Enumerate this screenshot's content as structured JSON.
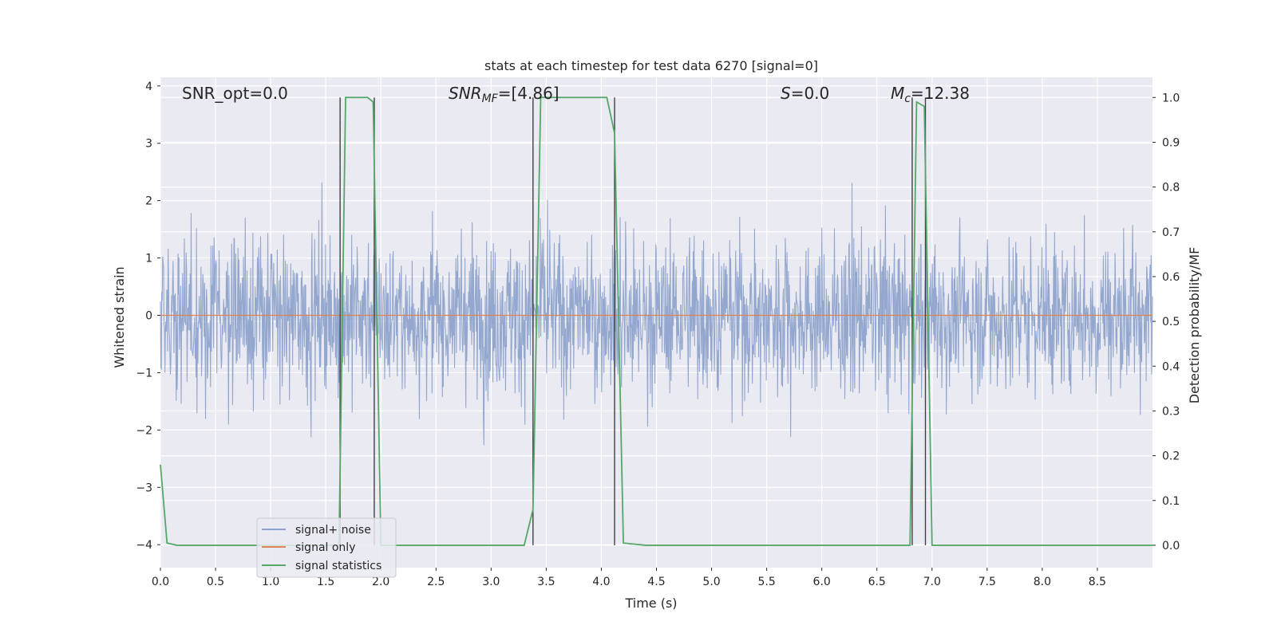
{
  "chart_data": {
    "type": "line",
    "title": "stats at each timestep for test data 6270 [signal=0]",
    "xlabel": "Time (s)",
    "ylabel": "Whitened strain",
    "ylabel_right": "Detection probability/MF",
    "xlim": [
      0,
      9.0
    ],
    "ylim": [
      -4.4,
      4.15
    ],
    "ylim_right": [
      -0.05,
      1.045
    ],
    "x_ticks": [
      0.0,
      0.5,
      1.0,
      1.5,
      2.0,
      2.5,
      3.0,
      3.5,
      4.0,
      4.5,
      5.0,
      5.5,
      6.0,
      6.5,
      7.0,
      7.5,
      8.0,
      8.5
    ],
    "x_tick_labels": [
      "0.0",
      "0.5",
      "1.0",
      "1.5",
      "2.0",
      "2.5",
      "3.0",
      "3.5",
      "4.0",
      "4.5",
      "5.0",
      "5.5",
      "6.0",
      "6.5",
      "7.0",
      "7.5",
      "8.0",
      "8.5"
    ],
    "y_ticks": [
      -4,
      -3,
      -2,
      -1,
      0,
      1,
      2,
      3,
      4
    ],
    "y_tick_labels": [
      "−4",
      "−3",
      "−2",
      "−1",
      "0",
      "1",
      "2",
      "3",
      "4"
    ],
    "y_ticks_right": [
      0.0,
      0.1,
      0.2,
      0.3,
      0.4,
      0.5,
      0.6,
      0.7,
      0.8,
      0.9,
      1.0
    ],
    "y_tick_labels_right": [
      "0.0",
      "0.1",
      "0.2",
      "0.3",
      "0.4",
      "0.5",
      "0.6",
      "0.7",
      "0.8",
      "0.9",
      "1.0"
    ],
    "grid": true,
    "legend_position": "lower-left",
    "colors": {
      "noise": "#8fa4cc",
      "signal": "#dd8452",
      "stats": "#55a868",
      "vlines": "#404040",
      "background": "#eaeaf2"
    },
    "annotations": {
      "snr_opt": "SNR_opt=0.0",
      "snr_mf_main": "SNR",
      "snr_mf_sub": "MF",
      "snr_mf_value": "=[4.86]",
      "s_main": "S",
      "s_value": "=0.0",
      "mc_main": "M",
      "mc_sub": "c",
      "mc_value": "=12.38"
    },
    "series": [
      {
        "name": "signal+ noise",
        "axis": "left",
        "description_x": [
          0,
          9.0
        ],
        "envelope": 3.7,
        "seed": 6270
      },
      {
        "name": "signal only",
        "axis": "left",
        "x": [
          0.0,
          9.0
        ],
        "y": [
          0.0,
          0.0
        ]
      },
      {
        "name": "signal statistics",
        "axis": "right",
        "x": [
          0.0,
          0.06,
          0.15,
          1.62,
          1.68,
          1.8,
          1.88,
          1.93,
          2.0,
          3.3,
          3.38,
          3.45,
          3.5,
          4.05,
          4.12,
          4.2,
          4.4,
          6.8,
          6.86,
          6.93,
          7.0,
          9.0
        ],
        "y": [
          0.18,
          0.005,
          0.0,
          0.0,
          1.0,
          1.0,
          1.0,
          0.99,
          0.0,
          0.0,
          0.08,
          1.0,
          1.0,
          1.0,
          0.92,
          0.005,
          0.0,
          0.0,
          0.99,
          0.98,
          0.0,
          0.0
        ]
      }
    ],
    "detection_lines": [
      1.63,
      1.94,
      3.38,
      4.12,
      6.82,
      6.94
    ]
  }
}
